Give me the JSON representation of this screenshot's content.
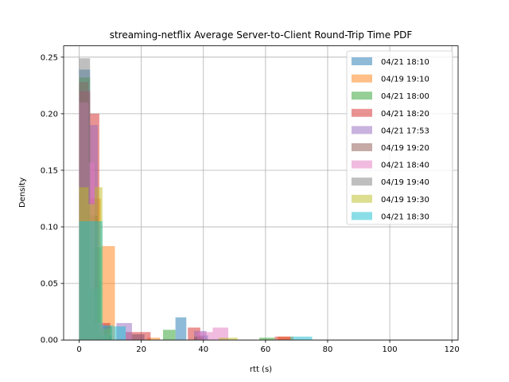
{
  "chart_data": {
    "type": "bar",
    "title": "streaming-netflix Average Server-to-Client Round-Trip Time PDF",
    "xlabel": "rtt (s)",
    "ylabel": "Density",
    "xlim": [
      -5,
      122
    ],
    "ylim": [
      0,
      0.26
    ],
    "xticks": [
      0,
      20,
      40,
      60,
      80,
      100,
      120
    ],
    "yticks": [
      0.0,
      0.05,
      0.1,
      0.15,
      0.2,
      0.25
    ],
    "xtick_labels": [
      "0",
      "20",
      "40",
      "60",
      "80",
      "100",
      "120"
    ],
    "ytick_labels": [
      "0.00",
      "0.05",
      "0.10",
      "0.15",
      "0.20",
      "0.25"
    ],
    "grid": true,
    "legend_position": "top-right",
    "series": [
      {
        "name": "04/21 18:10",
        "color": "#1f77b4",
        "bins": [
          [
            0,
            3.5,
            0.239
          ],
          [
            3.5,
            7,
            0.052
          ],
          [
            7,
            10.5,
            0.004
          ],
          [
            17,
            21,
            0.005
          ],
          [
            31,
            34.5,
            0.02
          ],
          [
            38,
            41.5,
            0.004
          ]
        ]
      },
      {
        "name": "04/19 19:10",
        "color": "#ff7f0e",
        "bins": [
          [
            0,
            3.5,
            0.218
          ],
          [
            3.5,
            7,
            0.125
          ],
          [
            7,
            11.5,
            0.083
          ],
          [
            22,
            26,
            0.002
          ],
          [
            64,
            69,
            0.003
          ]
        ]
      },
      {
        "name": "04/21 18:00",
        "color": "#2ca02c",
        "bins": [
          [
            0,
            3.5,
            0.232
          ],
          [
            3.5,
            7,
            0.082
          ],
          [
            7,
            10.5,
            0.012
          ],
          [
            27,
            31,
            0.009
          ],
          [
            58,
            63,
            0.002
          ]
        ]
      },
      {
        "name": "04/21 18:20",
        "color": "#d62728",
        "bins": [
          [
            0,
            3.5,
            0.22
          ],
          [
            3.5,
            6.5,
            0.2
          ],
          [
            6.5,
            10,
            0.015
          ],
          [
            15,
            23,
            0.007
          ],
          [
            35,
            39,
            0.011
          ],
          [
            63,
            68,
            0.003
          ]
        ]
      },
      {
        "name": "04/21 17:53",
        "color": "#9467bd",
        "bins": [
          [
            0,
            3.5,
            0.22
          ],
          [
            3.5,
            6,
            0.19
          ],
          [
            6,
            9,
            0.013
          ],
          [
            12,
            17,
            0.015
          ],
          [
            37,
            41,
            0.008
          ]
        ]
      },
      {
        "name": "04/19 19:20",
        "color": "#8c564b",
        "bins": [
          [
            0,
            3,
            0.228
          ],
          [
            3,
            6,
            0.11
          ],
          [
            6,
            9.5,
            0.01
          ],
          [
            37,
            40,
            0.003
          ]
        ]
      },
      {
        "name": "04/21 18:40",
        "color": "#e377c2",
        "bins": [
          [
            0,
            3,
            0.21
          ],
          [
            3,
            5,
            0.157
          ],
          [
            5,
            8,
            0.015
          ],
          [
            38,
            43,
            0.007
          ],
          [
            43,
            48,
            0.011
          ]
        ]
      },
      {
        "name": "04/19 19:40",
        "color": "#7f7f7f",
        "bins": [
          [
            0,
            3.5,
            0.249
          ],
          [
            3.5,
            6.5,
            0.045
          ],
          [
            6.5,
            10,
            0.005
          ]
        ]
      },
      {
        "name": "04/19 19:30",
        "color": "#bcbd22",
        "bins": [
          [
            0,
            3,
            0.135
          ],
          [
            3,
            5,
            0.12
          ],
          [
            5,
            7.5,
            0.135
          ],
          [
            7.5,
            10,
            0.01
          ],
          [
            45,
            51,
            0.002
          ]
        ]
      },
      {
        "name": "04/21 18:30",
        "color": "#17becf",
        "bins": [
          [
            0,
            7.5,
            0.105
          ],
          [
            7.5,
            11,
            0.013
          ],
          [
            11,
            15,
            0.012
          ],
          [
            68,
            75,
            0.003
          ]
        ]
      }
    ]
  }
}
